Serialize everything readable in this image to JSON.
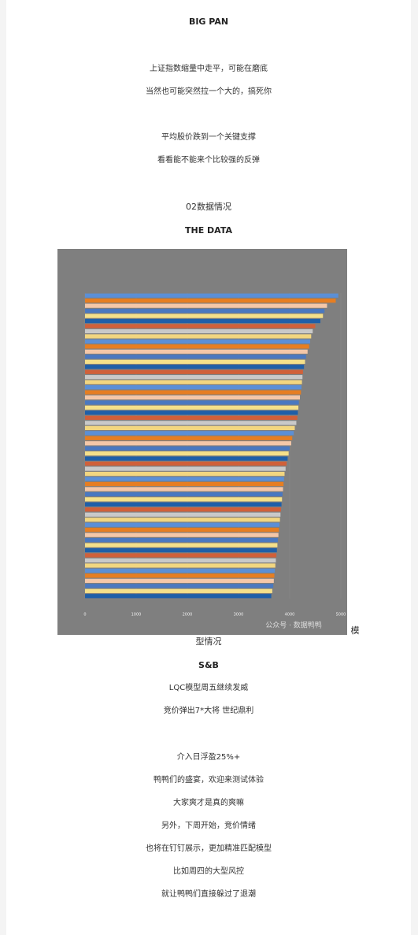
{
  "header": {
    "title": "BIG PAN"
  },
  "intro": [
    "上证指数缩量中走平，可能在磨底",
    "当然也可能突然拉一个大的，搞死你",
    "平均股价跌到一个关键支撑",
    "看看能不能来个比较强的反弹"
  ],
  "data_section": {
    "heading": "02数据情况",
    "subheading": "THE DATA"
  },
  "chart_data": {
    "type": "bar",
    "orientation": "horizontal",
    "values": [
      4950,
      4900,
      4730,
      4680,
      4650,
      4600,
      4500,
      4450,
      4420,
      4400,
      4380,
      4350,
      4320,
      4300,
      4280,
      4260,
      4250,
      4240,
      4230,
      4220,
      4200,
      4180,
      4170,
      4160,
      4150,
      4130,
      4100,
      4080,
      4050,
      4030,
      4000,
      3980,
      3960,
      3940,
      3920,
      3900,
      3890,
      3880,
      3870,
      3860,
      3850,
      3840,
      3830,
      3820,
      3810,
      3800,
      3790,
      3780,
      3770,
      3760,
      3750,
      3740,
      3730,
      3720,
      3710,
      3700,
      3690,
      3680,
      3660,
      3640
    ],
    "colors": [
      "#5b8fd6",
      "#e67e22",
      "#f4c7a8",
      "#4a78c0",
      "#f5e08a",
      "#1f5fa8",
      "#d0603a",
      "#c9c9c9",
      "#f2d680"
    ],
    "xlim": [
      0,
      5000
    ],
    "xticks": [
      0,
      1000,
      2000,
      3000,
      4000,
      5000
    ],
    "watermark": "公众号 · 数据鸭鸭"
  },
  "model_section": {
    "heading": [
      "模",
      "型情况"
    ],
    "subheading": "S&B"
  },
  "body": [
    "LQC模型周五继续发威",
    "竞价弹出7*大将 世纪鼎利",
    "介入日浮盈25%+",
    "鸭鸭们的盛宴，欢迎来测试体验",
    "大家爽才是真的爽嘛",
    "另外，下周开始，竞价情绪",
    "也将在钉钉展示，更加精准匹配模型",
    "比如周四的大型风控",
    "就让鸭鸭们直接躲过了退潮"
  ]
}
